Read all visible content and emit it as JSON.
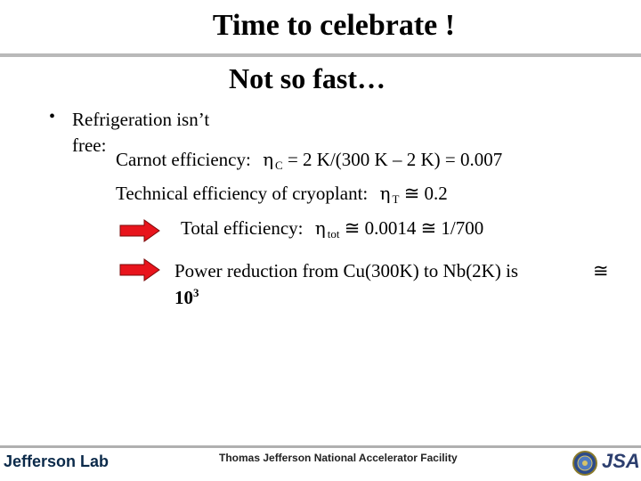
{
  "slide": {
    "title": "Time to celebrate !",
    "subtitle": "Not so fast…",
    "bullet": {
      "marker": "•",
      "line1": "Refrigeration isn’t",
      "line2": "free:"
    },
    "carnot": {
      "label": "Carnot efficiency:",
      "symbol": "η",
      "sub": "C",
      "expr": "= 2 K/(300 K – 2 K) = 0.007"
    },
    "technical": {
      "label": "Technical efficiency of cryoplant:",
      "symbol": "η",
      "sub": "T",
      "expr": "≅ 0.2"
    },
    "total": {
      "label": "Total efficiency:",
      "symbol": "η",
      "sub": "tot",
      "expr": "≅ 0.0014 ≅ 1/700"
    },
    "power": {
      "line1": "Power reduction from Cu(300K) to Nb(2K) is",
      "approx": "≅",
      "base": "10",
      "exponent": "3"
    }
  },
  "footer": {
    "logo": "Jefferson Lab",
    "facility": "Thomas Jefferson National Accelerator Facility",
    "partner_logo": "JSA"
  },
  "colors": {
    "arrow": "#e8141c",
    "rule": "#b9b9b9"
  }
}
